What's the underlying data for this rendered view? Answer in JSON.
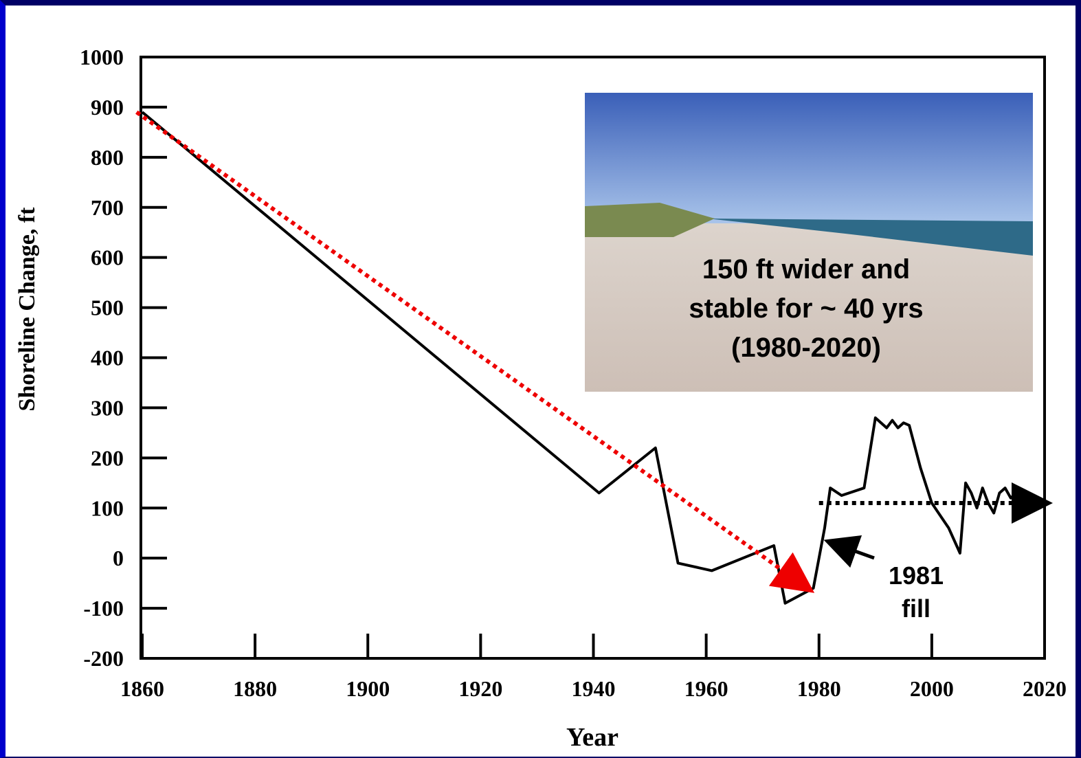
{
  "chart_data": {
    "type": "line",
    "xlabel": "Year",
    "ylabel": "Shoreline Change, ft",
    "xlim": [
      1860,
      2020
    ],
    "xticks": [
      1860,
      1880,
      1900,
      1920,
      1940,
      1960,
      1980,
      2000,
      2020
    ],
    "ylim": [
      -200,
      1000
    ],
    "yticks": [
      -200,
      -100,
      0,
      100,
      200,
      300,
      400,
      500,
      600,
      700,
      800,
      900,
      1000
    ],
    "series": [
      {
        "color": "#000000",
        "x": [
          1860,
          1941,
          1951,
          1955,
          1961,
          1972,
          1974,
          1979,
          1981,
          1982,
          1984,
          1988,
          1990,
          1992,
          1993,
          1994,
          1995,
          1996,
          1998,
          2000,
          2003,
          2005,
          2006,
          2007,
          2008,
          2009,
          2010,
          2011,
          2012,
          2013,
          2014,
          2015,
          2016,
          2017,
          2018,
          2019
        ],
        "values": [
          890,
          130,
          220,
          -10,
          -25,
          25,
          -90,
          -60,
          60,
          140,
          125,
          140,
          280,
          260,
          275,
          260,
          270,
          265,
          180,
          110,
          60,
          10,
          150,
          130,
          100,
          140,
          110,
          90,
          130,
          140,
          120,
          130,
          90,
          100,
          110,
          110
        ]
      }
    ],
    "trend_lines": [
      {
        "color": "#ee0000",
        "x": [
          1859,
          1978
        ],
        "values": [
          890,
          -60
        ]
      },
      {
        "color": "#000000",
        "x": [
          1980,
          2020
        ],
        "values": [
          110,
          110
        ]
      }
    ],
    "annotations": [
      {
        "lines": [
          "150 ft wider and",
          "stable for ~ 40 yrs",
          "(1980-2020)"
        ]
      },
      {
        "lines": [
          "1981",
          "fill"
        ]
      }
    ]
  }
}
